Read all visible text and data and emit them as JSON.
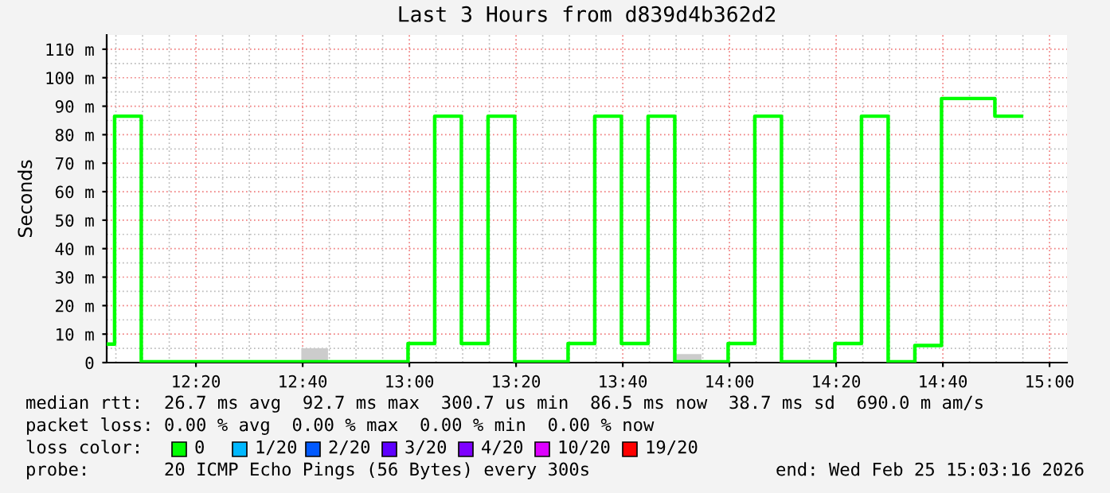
{
  "chart_data": {
    "type": "step",
    "title": "Last 3 Hours from d839d4b362d2",
    "ylabel": "Seconds",
    "series": [
      {
        "type": "bar",
        "color": "#cccccc",
        "x": [
          12.6625,
          13.8292
        ],
        "values": [
          5,
          3
        ]
      },
      {
        "color": "#00ff00",
        "x": [
          12.0545,
          12.0792,
          12.1625,
          12.9958,
          13.0792,
          13.1625,
          13.2458,
          13.3292,
          13.4958,
          13.5792,
          13.6625,
          13.7458,
          13.8292,
          13.9958,
          14.0792,
          14.1625,
          14.3292,
          14.4125,
          14.4958,
          14.5792,
          14.6625,
          14.8292,
          14.9125
        ],
        "values": [
          6.5,
          86.5,
          0.3,
          6.7,
          86.5,
          6.7,
          86.5,
          0.3,
          6.7,
          86.5,
          6.7,
          86.5,
          0.3,
          6.7,
          86.5,
          0.3,
          6.7,
          86.5,
          0.3,
          6,
          92.7,
          86.5,
          86.5
        ]
      }
    ],
    "xlim": [
      12.0545,
      15.0545
    ],
    "xticks": [
      {
        "value": 12.3333,
        "label": "12:20"
      },
      {
        "value": 12.6667,
        "label": "12:40"
      },
      {
        "value": 13.0,
        "label": "13:00"
      },
      {
        "value": 13.3333,
        "label": "13:20"
      },
      {
        "value": 13.6667,
        "label": "13:40"
      },
      {
        "value": 14.0,
        "label": "14:00"
      },
      {
        "value": 14.3333,
        "label": "14:20"
      },
      {
        "value": 14.6667,
        "label": "14:40"
      },
      {
        "value": 15.0,
        "label": "15:00"
      }
    ],
    "ylim": [
      0,
      115
    ],
    "yticks": [
      0,
      {
        "value": 10,
        "label": "10 m"
      },
      {
        "value": 20,
        "label": "20 m"
      },
      {
        "value": 30,
        "label": "30 m"
      },
      {
        "value": 40,
        "label": "40 m"
      },
      {
        "value": 50,
        "label": "50 m"
      },
      {
        "value": 60,
        "label": "60 m"
      },
      {
        "value": 70,
        "label": "70 m"
      },
      {
        "value": 80,
        "label": "80 m"
      },
      {
        "value": 90,
        "label": "90 m"
      },
      {
        "value": 100,
        "label": "100 m"
      },
      {
        "value": 110,
        "label": "110 m"
      }
    ],
    "grid": true,
    "annotations": [
      "median rtt:  26.7 ms avg  92.7 ms max  300.7 us min  86.5 ms now  38.7 ms sd  690.0 m am/s",
      "packet loss: 0.00 % avg  0.00 % max  0.00 % min  0.00 % now",
      "loss color:",
      "0",
      "1/20",
      "2/20",
      "3/20",
      "4/20",
      "10/20",
      "19/20",
      "probe:       20 ICMP Echo Pings (56 Bytes) every 300s",
      "end: Wed Feb 25 15:03:16 2026"
    ]
  }
}
